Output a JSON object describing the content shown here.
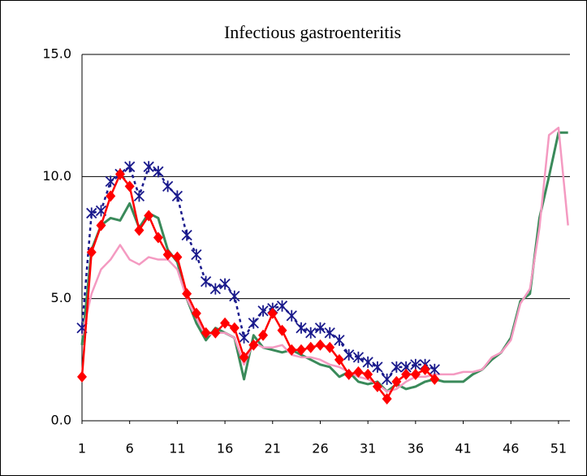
{
  "chart_data": {
    "type": "line",
    "title": "Infectious gastroenteritis",
    "x": [
      1,
      2,
      3,
      4,
      5,
      6,
      7,
      8,
      9,
      10,
      11,
      12,
      13,
      14,
      15,
      16,
      17,
      18,
      19,
      20,
      21,
      22,
      23,
      24,
      25,
      26,
      27,
      28,
      29,
      30,
      31,
      32,
      33,
      34,
      35,
      36,
      37,
      38,
      39,
      40,
      41,
      42,
      43,
      44,
      45,
      46,
      47,
      48,
      49,
      50,
      51,
      52
    ],
    "xlim": [
      1,
      52.2
    ],
    "xticks": [
      1,
      6,
      11,
      16,
      21,
      26,
      31,
      36,
      41,
      46,
      51
    ],
    "ylim": [
      0,
      15
    ],
    "yticks": [
      {
        "value": 0,
        "label": "0.0"
      },
      {
        "value": 5,
        "label": "5.0"
      },
      {
        "value": 10,
        "label": "10.0"
      },
      {
        "value": 15,
        "label": "15.0"
      }
    ],
    "grid": true,
    "series": [
      {
        "color": "#3a8a5a",
        "marker": "none",
        "dashed": false,
        "width": 3,
        "values": [
          3.1,
          7.0,
          8.0,
          8.3,
          8.2,
          8.9,
          7.9,
          8.5,
          8.3,
          7.0,
          6.5,
          5.0,
          4.0,
          3.3,
          3.8,
          3.6,
          3.4,
          1.7,
          3.5,
          3.0,
          2.9,
          2.8,
          2.9,
          2.7,
          2.5,
          2.3,
          2.2,
          1.8,
          2.0,
          1.6,
          1.5,
          1.6,
          1.2,
          1.5,
          1.3,
          1.4,
          1.6,
          1.7,
          1.6,
          1.6,
          1.6,
          1.9,
          2.1,
          2.5,
          2.8,
          3.4,
          4.9,
          5.2,
          8.3,
          10.0,
          11.8,
          11.8
        ]
      },
      {
        "color": "#f49ac1",
        "marker": "none",
        "dashed": false,
        "width": 2.5,
        "values": [
          3.5,
          5.2,
          6.2,
          6.6,
          7.2,
          6.6,
          6.4,
          6.7,
          6.6,
          6.6,
          6.2,
          5.0,
          4.2,
          3.5,
          3.6,
          3.6,
          3.4,
          2.3,
          3.2,
          3.0,
          3.0,
          3.1,
          2.7,
          2.6,
          2.6,
          2.5,
          2.3,
          2.2,
          2.0,
          1.8,
          1.7,
          1.5,
          1.2,
          1.3,
          1.6,
          1.8,
          1.8,
          1.9,
          1.9,
          1.9,
          2.0,
          2.0,
          2.1,
          2.6,
          2.8,
          3.3,
          4.8,
          5.4,
          7.9,
          11.7,
          12.0,
          8.0
        ]
      },
      {
        "color": "#1a1a8c",
        "marker": "asterisk",
        "dashed": true,
        "width": 2.5,
        "values": [
          3.8,
          8.5,
          8.6,
          9.8,
          10.1,
          10.4,
          9.2,
          10.4,
          10.2,
          9.6,
          9.2,
          7.6,
          6.8,
          5.7,
          5.4,
          5.6,
          5.1,
          3.4,
          4.0,
          4.5,
          4.6,
          4.7,
          4.3,
          3.8,
          3.6,
          3.8,
          3.6,
          3.3,
          2.7,
          2.6,
          2.4,
          2.2,
          1.7,
          2.2,
          2.2,
          2.3,
          2.3,
          2.1,
          null,
          null,
          null,
          null,
          null,
          null,
          null,
          null,
          null,
          null,
          null,
          null,
          null,
          null
        ]
      },
      {
        "color": "#ff0000",
        "marker": "diamond",
        "dashed": false,
        "width": 2.5,
        "values": [
          1.8,
          6.9,
          8.0,
          9.2,
          10.1,
          9.6,
          7.8,
          8.4,
          7.5,
          6.8,
          6.7,
          5.2,
          4.4,
          3.6,
          3.6,
          4.0,
          3.8,
          2.6,
          3.1,
          3.5,
          4.4,
          3.7,
          2.9,
          2.9,
          3.0,
          3.1,
          3.0,
          2.5,
          1.9,
          2.0,
          1.9,
          1.4,
          0.9,
          1.6,
          1.9,
          1.9,
          2.1,
          1.7,
          null,
          null,
          null,
          null,
          null,
          null,
          null,
          null,
          null,
          null,
          null,
          null,
          null,
          null
        ]
      }
    ]
  }
}
